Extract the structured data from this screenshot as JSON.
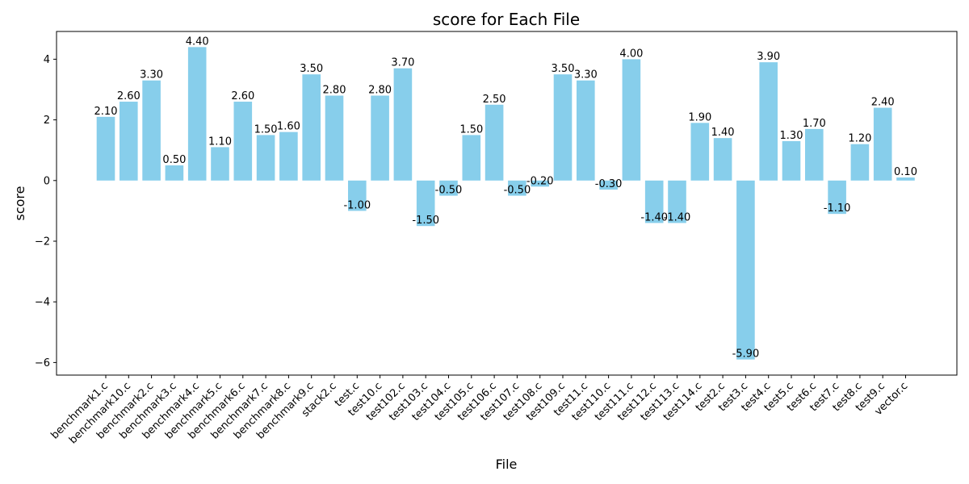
{
  "chart_data": {
    "type": "bar",
    "title": "score for Each File",
    "xlabel": "File",
    "ylabel": "score",
    "categories": [
      "benchmark1.c",
      "benchmark10.c",
      "benchmark2.c",
      "benchmark3.c",
      "benchmark4.c",
      "benchmark5.c",
      "benchmark6.c",
      "benchmark7.c",
      "benchmark8.c",
      "benchmark9.c",
      "stack2.c",
      "test.c",
      "test10.c",
      "test102.c",
      "test103.c",
      "test104.c",
      "test105.c",
      "test106.c",
      "test107.c",
      "test108.c",
      "test109.c",
      "test11.c",
      "test110.c",
      "test111.c",
      "test112.c",
      "test113.c",
      "test114.c",
      "test2.c",
      "test3.c",
      "test4.c",
      "test5.c",
      "test6.c",
      "test7.c",
      "test8.c",
      "test9.c",
      "vector.c"
    ],
    "values": [
      2.1,
      2.6,
      3.3,
      0.5,
      4.4,
      1.1,
      2.6,
      1.5,
      1.6,
      3.5,
      2.8,
      -1.0,
      2.8,
      3.7,
      -1.5,
      -0.5,
      1.5,
      2.5,
      -0.5,
      -0.2,
      3.5,
      3.3,
      -0.3,
      4.0,
      -1.4,
      -1.4,
      1.9,
      1.4,
      -5.9,
      3.9,
      1.3,
      1.7,
      -1.1,
      1.2,
      2.4,
      0.1
    ],
    "data_labels": [
      "2.10",
      "2.60",
      "3.30",
      "0.50",
      "4.40",
      "1.10",
      "2.60",
      "1.50",
      "1.60",
      "3.50",
      "2.80",
      "-1.00",
      "2.80",
      "3.70",
      "-1.50",
      "-0.50",
      "1.50",
      "2.50",
      "-0.50",
      "-0.20",
      "3.50",
      "3.30",
      "-0.30",
      "4.00",
      "-1.40",
      "-1.40",
      "1.90",
      "1.40",
      "-5.90",
      "3.90",
      "1.30",
      "1.70",
      "-1.10",
      "1.20",
      "2.40",
      "0.10"
    ],
    "yticks": [
      -6,
      -4,
      -2,
      0,
      2,
      4
    ],
    "ytick_labels": [
      "−6",
      "−4",
      "−2",
      "0",
      "2",
      "4"
    ],
    "ylim": [
      -6.415,
      4.915
    ],
    "bar_color": "#87ceeb",
    "grid": false,
    "legend": "none"
  }
}
